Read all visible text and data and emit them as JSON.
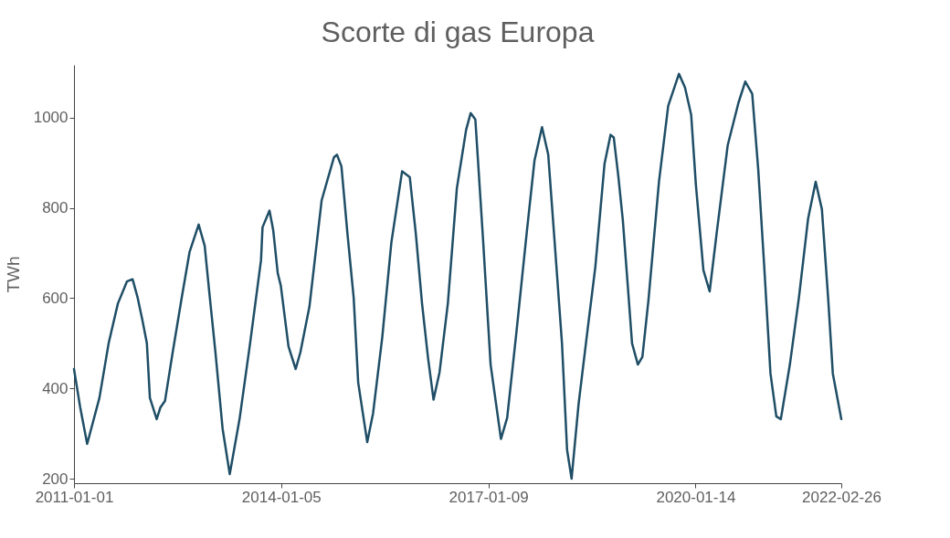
{
  "chart_data": {
    "type": "line",
    "title": "Scorte di gas Europa",
    "ylabel": "TWh",
    "xlim": [
      "2011-01-01",
      "2022-02-26"
    ],
    "xticks": [
      "2011-01-01",
      "2014-01-05",
      "2017-01-09",
      "2020-01-14",
      "2022-02-26"
    ],
    "ylim": [
      190,
      1117
    ],
    "yticks": [
      200,
      400,
      600,
      800,
      1000
    ],
    "grid": false,
    "legend": false,
    "marker": "none",
    "line_style": "solid",
    "series": [
      {
        "color": "#1f4e66",
        "x": [
          "2011-01-01",
          "2011-02-03",
          "2011-03-12",
          "2011-05-16",
          "2011-07-04",
          "2011-08-22",
          "2011-10-09",
          "2011-11-08",
          "2011-12-05",
          "2011-12-29",
          "2012-01-23",
          "2012-02-08",
          "2012-03-15",
          "2012-04-04",
          "2012-04-28",
          "2012-06-08",
          "2012-07-26",
          "2012-09-06",
          "2012-10-24",
          "2012-11-25",
          "2012-12-19",
          "2013-01-21",
          "2013-02-28",
          "2013-04-07",
          "2013-05-29",
          "2013-07-24",
          "2013-09-20",
          "2013-09-28",
          "2013-11-04",
          "2013-11-24",
          "2013-12-18",
          "2014-01-03",
          "2014-02-13",
          "2014-03-23",
          "2014-04-17",
          "2014-06-04",
          "2014-08-08",
          "2014-10-12",
          "2014-10-28",
          "2014-11-21",
          "2014-12-23",
          "2015-01-25",
          "2015-02-18",
          "2015-04-07",
          "2015-05-08",
          "2015-06-26",
          "2015-08-13",
          "2015-10-09",
          "2015-11-19",
          "2015-12-21",
          "2016-01-23",
          "2016-02-24",
          "2016-03-24",
          "2016-04-25",
          "2016-06-08",
          "2016-07-26",
          "2016-09-13",
          "2016-10-07",
          "2016-11-01",
          "2016-12-11",
          "2017-01-21",
          "2017-03-17",
          "2017-04-19",
          "2017-06-06",
          "2017-08-02",
          "2017-09-11",
          "2017-10-21",
          "2017-11-23",
          "2017-12-25",
          "2018-02-04",
          "2018-03-03",
          "2018-03-27",
          "2018-05-03",
          "2018-06-21",
          "2018-07-31",
          "2018-09-18",
          "2018-10-20",
          "2018-11-06",
          "2018-11-30",
          "2018-12-24",
          "2019-01-18",
          "2019-02-11",
          "2019-03-14",
          "2019-04-07",
          "2019-05-09",
          "2019-07-04",
          "2019-08-22",
          "2019-10-18",
          "2019-11-19",
          "2019-12-22",
          "2020-01-16",
          "2020-02-25",
          "2020-03-29",
          "2020-05-07",
          "2020-07-03",
          "2020-08-29",
          "2020-10-04",
          "2020-11-10",
          "2020-12-12",
          "2021-01-13",
          "2021-02-15",
          "2021-03-18",
          "2021-04-11",
          "2021-05-29",
          "2021-07-16",
          "2021-09-03",
          "2021-10-13",
          "2021-11-15",
          "2021-12-18",
          "2022-01-12",
          "2022-02-26"
        ],
        "values": [
          443,
          358,
          277,
          379,
          500,
          588,
          637,
          642,
          601,
          554,
          500,
          379,
          332,
          358,
          372,
          480,
          601,
          703,
          763,
          716,
          615,
          480,
          311,
          210,
          332,
          500,
          684,
          757,
          794,
          750,
          655,
          628,
          493,
          443,
          480,
          581,
          817,
          912,
          918,
          892,
          743,
          601,
          413,
          281,
          345,
          514,
          723,
          881,
          868,
          743,
          588,
          467,
          375,
          436,
          588,
          844,
          973,
          1010,
          996,
          736,
          453,
          288,
          335,
          520,
          750,
          905,
          979,
          918,
          736,
          500,
          264,
          200,
          365,
          534,
          669,
          898,
          962,
          956,
          871,
          773,
          635,
          500,
          453,
          470,
          595,
          858,
          1026,
          1097,
          1067,
          1006,
          851,
          662,
          615,
          750,
          939,
          1033,
          1080,
          1053,
          885,
          669,
          433,
          338,
          332,
          453,
          601,
          777,
          858,
          797,
          601,
          433,
          332
        ]
      }
    ]
  }
}
